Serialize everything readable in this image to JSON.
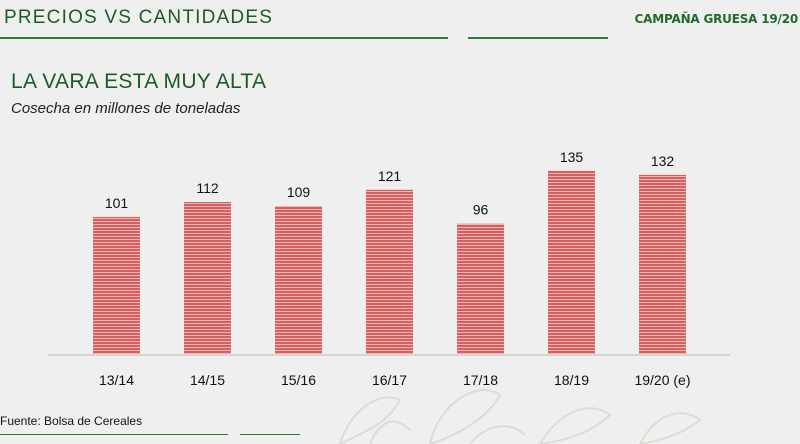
{
  "header": {
    "section_title": "PRECIOS VS CANTIDADES",
    "brand": "CAMPAÑA GRUESA 19/20"
  },
  "slide": {
    "headline": "LA VARA ESTA MUY ALTA",
    "subtitle": "Cosecha en millones de toneladas"
  },
  "footer": {
    "source": "Fuente: Bolsa de Cereales"
  },
  "colors": {
    "bar": "#d66060",
    "bar_stripe": "#efb4b4",
    "accent": "#2f7a35"
  },
  "chart_data": {
    "type": "bar",
    "categories": [
      "13/14",
      "14/15",
      "15/16",
      "16/17",
      "17/18",
      "18/19",
      "19/20 (e)"
    ],
    "values": [
      101,
      112,
      109,
      121,
      96,
      135,
      132
    ],
    "title": "",
    "xlabel": "",
    "ylabel": "",
    "ylim": [
      0,
      160
    ],
    "grid": false,
    "legend": "none",
    "data_labels": true
  }
}
